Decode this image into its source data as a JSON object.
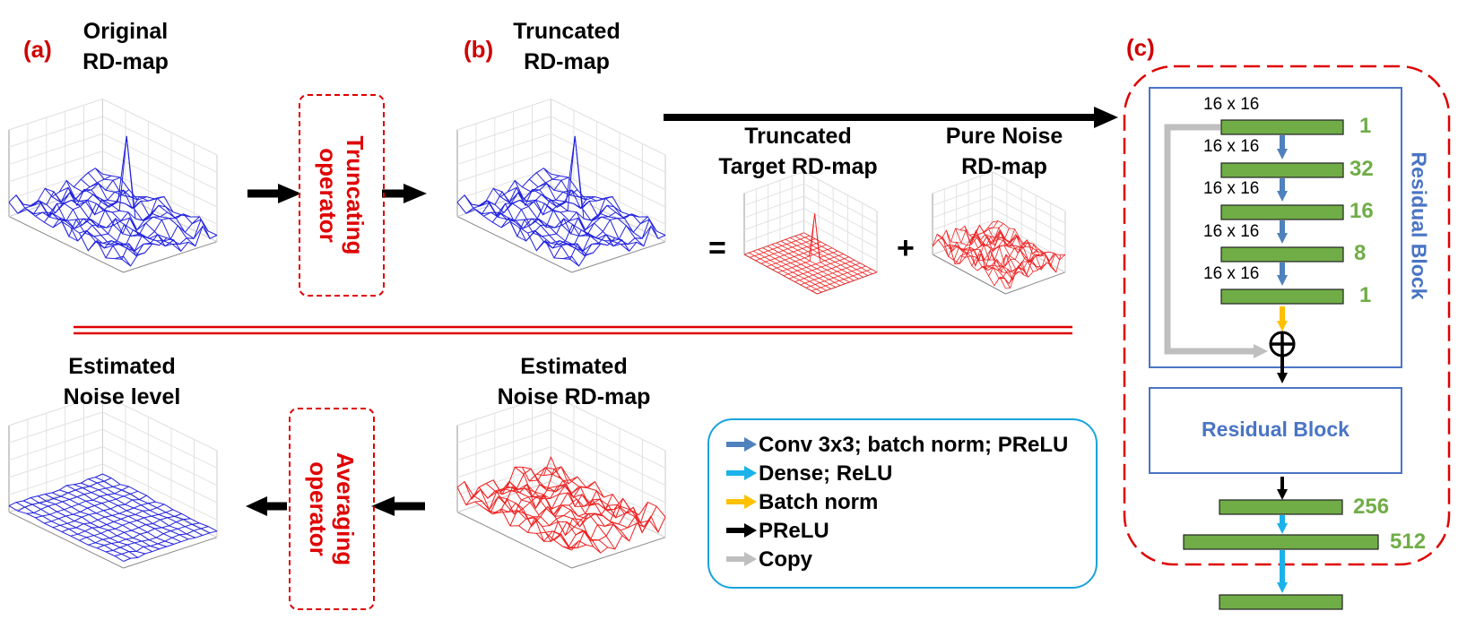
{
  "panels": {
    "a": {
      "letter": "(a)",
      "title_line1": "Original",
      "title_line2": "RD-map"
    },
    "b": {
      "letter": "(b)",
      "title_line1": "Truncated",
      "title_line2": "RD-map"
    },
    "c": {
      "letter": "(c)"
    }
  },
  "operators": {
    "truncating": {
      "line1": "Truncating",
      "line2": "operator"
    },
    "averaging": {
      "line1": "Averaging",
      "line2": "operator"
    }
  },
  "decomposition": {
    "target_line1": "Truncated",
    "target_line2": "Target RD-map",
    "noise_line1": "Pure Noise",
    "noise_line2": "RD-map",
    "equals": "=",
    "plus": "+"
  },
  "bottom": {
    "estimated_noise_level_line1": "Estimated",
    "estimated_noise_level_line2": "Noise level",
    "estimated_noise_map_line1": "Estimated",
    "estimated_noise_map_line2": "Noise RD-map"
  },
  "legend": {
    "items": [
      {
        "label": "Conv 3x3; batch norm; PReLU",
        "color": "#4f81bd"
      },
      {
        "label": "Dense; ReLU",
        "color": "#1ab2ea"
      },
      {
        "label": "Batch norm",
        "color": "#ffc000"
      },
      {
        "label": "PReLU",
        "color": "#000000"
      },
      {
        "label": "Copy",
        "color": "#bfbfbf"
      }
    ]
  },
  "network": {
    "residual_block_vertical": "Residual Block",
    "residual_block_second": "Residual Block",
    "layers": [
      {
        "dim": "16 x 16",
        "channels": "1"
      },
      {
        "dim": "16 x 16",
        "channels": "32"
      },
      {
        "dim": "16 x 16",
        "channels": "16"
      },
      {
        "dim": "16 x 16",
        "channels": "8"
      },
      {
        "dim": "16 x 16",
        "channels": "1"
      }
    ],
    "dense": [
      {
        "units": "256"
      },
      {
        "units": "512"
      }
    ],
    "plus_symbol": "+"
  },
  "colors": {
    "red": "#e00000",
    "layer_green": "#70ad47",
    "block_blue": "#4a74c4",
    "mesh_blue": "#2222dd",
    "mesh_red": "#ee2222"
  }
}
